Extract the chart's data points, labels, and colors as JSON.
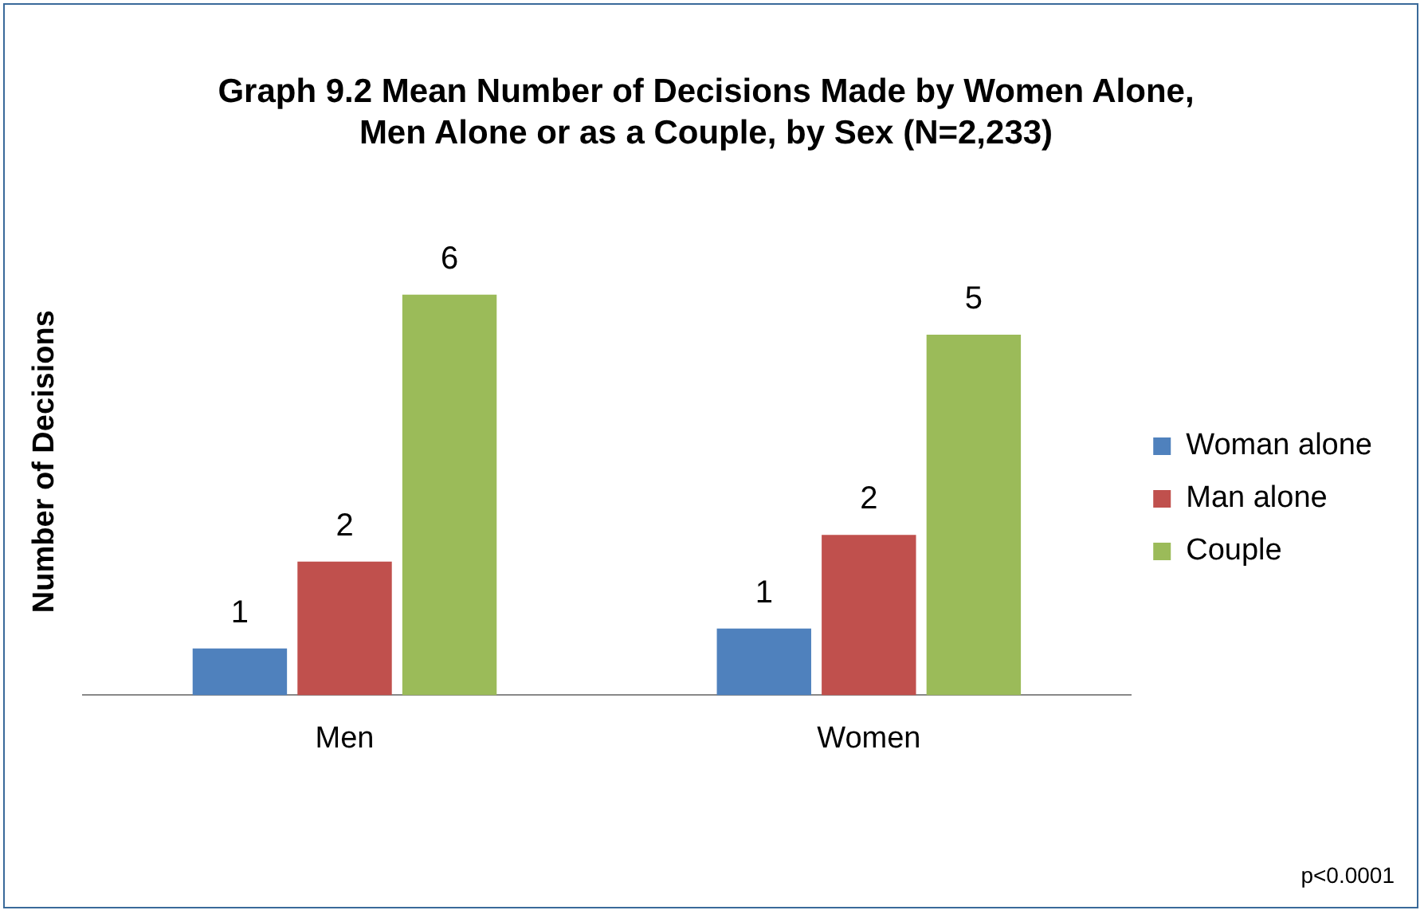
{
  "chart_data": {
    "type": "bar",
    "title": "Graph 9.2 Mean Number of Decisions Made by Women Alone, Men Alone or as a Couple, by Sex (N=2,233)",
    "ylabel": "Number of Decisions",
    "categories": [
      "Men",
      "Women"
    ],
    "series": [
      {
        "name": "Woman alone",
        "color": "#4f81bd",
        "values": [
          0.7,
          1.0
        ],
        "value_labels": [
          "1",
          "1"
        ]
      },
      {
        "name": "Man alone",
        "color": "#c0504d",
        "values": [
          2.0,
          2.4
        ],
        "value_labels": [
          "2",
          "2"
        ]
      },
      {
        "name": "Couple",
        "color": "#9bbb59",
        "values": [
          6.0,
          5.4
        ],
        "value_labels": [
          "6",
          "5"
        ]
      }
    ],
    "legend": "right",
    "grid": false,
    "annotations": [
      "p<0.0001"
    ]
  }
}
